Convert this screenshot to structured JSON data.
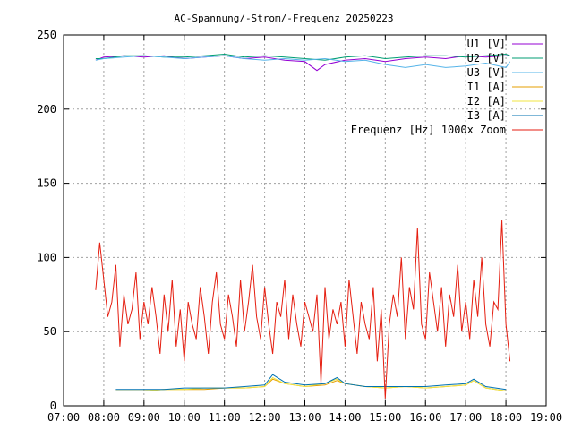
{
  "chart_data": {
    "type": "line",
    "title": "AC-Spannung/-Strom/-Frequenz 20250223",
    "xlabel": "",
    "ylabel": "",
    "x_tick_labels": [
      "07:00",
      "08:00",
      "09:00",
      "10:00",
      "11:00",
      "12:00",
      "13:00",
      "14:00",
      "15:00",
      "16:00",
      "17:00",
      "18:00",
      "19:00"
    ],
    "x_range_hours": [
      7,
      19
    ],
    "ylim": [
      0,
      250
    ],
    "y_ticks": [
      0,
      50,
      100,
      150,
      200,
      250
    ],
    "grid": true,
    "legend_position": "top-right",
    "series": [
      {
        "name": "U1 [V]",
        "color": "#9400d3",
        "x": [
          7.8,
          8.0,
          8.5,
          9.0,
          9.5,
          10.0,
          10.5,
          11.0,
          11.5,
          12.0,
          12.5,
          13.0,
          13.3,
          13.5,
          14.0,
          14.5,
          15.0,
          15.5,
          16.0,
          16.5,
          17.0,
          17.5,
          18.0,
          18.1
        ],
        "values": [
          233,
          235,
          236,
          235,
          236,
          234,
          235,
          236,
          234,
          235,
          233,
          232,
          226,
          230,
          233,
          234,
          232,
          234,
          235,
          234,
          236,
          235,
          236,
          236
        ]
      },
      {
        "name": "U2 [V]",
        "color": "#009e73",
        "x": [
          7.8,
          8.0,
          8.5,
          9.0,
          9.5,
          10.0,
          10.5,
          11.0,
          11.5,
          12.0,
          12.5,
          13.0,
          13.5,
          14.0,
          14.5,
          15.0,
          15.5,
          16.0,
          16.5,
          17.0,
          17.5,
          18.0,
          18.1
        ],
        "values": [
          234,
          234,
          236,
          236,
          235,
          235,
          236,
          237,
          235,
          236,
          235,
          234,
          233,
          235,
          236,
          234,
          235,
          236,
          236,
          235,
          236,
          237,
          236
        ]
      },
      {
        "name": "U3 [V]",
        "color": "#56b4e9",
        "x": [
          7.8,
          8.0,
          8.5,
          9.0,
          9.5,
          10.0,
          10.5,
          11.0,
          11.5,
          12.0,
          12.5,
          13.0,
          13.5,
          14.0,
          14.5,
          15.0,
          15.5,
          16.0,
          16.5,
          17.0,
          17.5,
          18.0,
          18.1
        ],
        "values": [
          233,
          234,
          235,
          236,
          235,
          234,
          235,
          236,
          234,
          233,
          234,
          233,
          234,
          232,
          233,
          230,
          228,
          230,
          228,
          229,
          231,
          228,
          232
        ]
      },
      {
        "name": "I1 [A]",
        "color": "#e69f00",
        "x": [
          8.3,
          9.0,
          9.5,
          10.0,
          10.5,
          11.0,
          11.5,
          12.0,
          12.2,
          12.5,
          13.0,
          13.5,
          13.8,
          14.0,
          14.5,
          15.0,
          15.5,
          16.0,
          16.5,
          17.0,
          17.2,
          17.5,
          18.0
        ],
        "values": [
          10,
          10,
          11,
          11,
          11,
          12,
          12,
          13,
          18,
          15,
          13,
          14,
          17,
          15,
          13,
          12,
          13,
          12,
          13,
          14,
          17,
          12,
          10
        ]
      },
      {
        "name": "I2 [A]",
        "color": "#f0e442",
        "x": [
          8.3,
          9.0,
          9.5,
          10.0,
          10.5,
          11.0,
          11.5,
          12.0,
          12.2,
          12.5,
          13.0,
          13.5,
          13.8,
          14.0,
          14.5,
          15.0,
          15.5,
          16.0,
          16.5,
          17.0,
          17.2,
          17.5,
          18.0
        ],
        "values": [
          10,
          10,
          11,
          11,
          12,
          12,
          12,
          13,
          19,
          15,
          13,
          15,
          18,
          15,
          13,
          12,
          13,
          12,
          13,
          14,
          17,
          12,
          10
        ]
      },
      {
        "name": "I3 [A]",
        "color": "#0072b2",
        "x": [
          8.3,
          9.0,
          9.5,
          10.0,
          10.5,
          11.0,
          11.5,
          12.0,
          12.2,
          12.5,
          13.0,
          13.5,
          13.8,
          14.0,
          14.5,
          15.0,
          15.5,
          16.0,
          16.5,
          17.0,
          17.2,
          17.5,
          18.0
        ],
        "values": [
          11,
          11,
          11,
          12,
          12,
          12,
          13,
          14,
          21,
          16,
          14,
          15,
          19,
          15,
          13,
          13,
          13,
          13,
          14,
          15,
          18,
          13,
          11
        ]
      },
      {
        "name": "Frequenz [Hz] 1000x Zoom",
        "color": "#e51e10",
        "x": [
          7.8,
          7.9,
          8.0,
          8.1,
          8.2,
          8.3,
          8.4,
          8.5,
          8.6,
          8.7,
          8.8,
          8.9,
          9.0,
          9.1,
          9.2,
          9.3,
          9.4,
          9.5,
          9.6,
          9.7,
          9.8,
          9.9,
          10.0,
          10.1,
          10.2,
          10.3,
          10.4,
          10.5,
          10.6,
          10.7,
          10.8,
          10.9,
          11.0,
          11.1,
          11.2,
          11.3,
          11.4,
          11.5,
          11.6,
          11.7,
          11.8,
          11.9,
          12.0,
          12.1,
          12.2,
          12.3,
          12.4,
          12.5,
          12.6,
          12.7,
          12.8,
          12.9,
          13.0,
          13.1,
          13.2,
          13.3,
          13.4,
          13.5,
          13.6,
          13.7,
          13.8,
          13.9,
          14.0,
          14.1,
          14.2,
          14.3,
          14.4,
          14.5,
          14.6,
          14.7,
          14.8,
          14.9,
          15.0,
          15.1,
          15.2,
          15.3,
          15.4,
          15.5,
          15.6,
          15.7,
          15.8,
          15.9,
          16.0,
          16.1,
          16.2,
          16.3,
          16.4,
          16.5,
          16.6,
          16.7,
          16.8,
          16.9,
          17.0,
          17.1,
          17.2,
          17.3,
          17.4,
          17.5,
          17.6,
          17.7,
          17.8,
          17.9,
          18.0,
          18.1
        ],
        "values": [
          78,
          110,
          85,
          60,
          70,
          95,
          40,
          75,
          55,
          65,
          90,
          45,
          70,
          55,
          80,
          60,
          35,
          75,
          50,
          85,
          40,
          65,
          30,
          70,
          55,
          45,
          80,
          60,
          35,
          70,
          90,
          55,
          45,
          75,
          60,
          40,
          85,
          50,
          70,
          95,
          60,
          45,
          80,
          55,
          35,
          70,
          60,
          85,
          45,
          75,
          55,
          40,
          70,
          60,
          50,
          75,
          15,
          80,
          45,
          65,
          55,
          70,
          40,
          85,
          60,
          35,
          70,
          55,
          45,
          80,
          30,
          65,
          5,
          55,
          75,
          60,
          100,
          45,
          80,
          65,
          120,
          55,
          45,
          90,
          70,
          50,
          80,
          40,
          75,
          60,
          95,
          50,
          70,
          45,
          85,
          60,
          100,
          55,
          40,
          70,
          65,
          125,
          55,
          30
        ]
      }
    ]
  }
}
